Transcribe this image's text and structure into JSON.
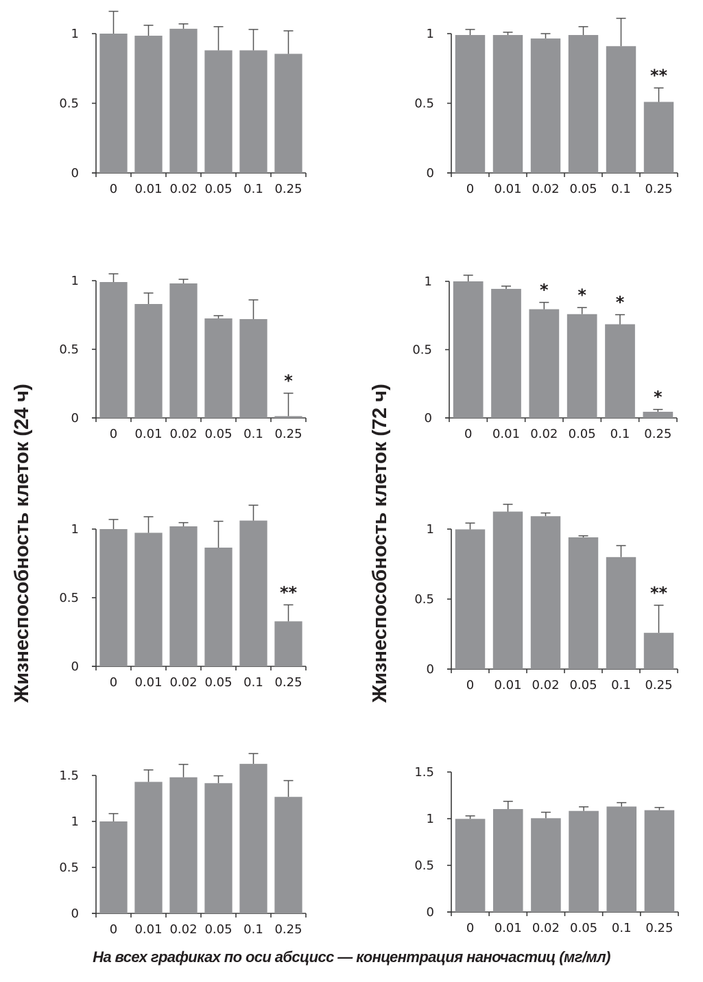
{
  "figure": {
    "ylabel_left": "Жизнеспособность клеток (24 ч)",
    "ylabel_right": "Жизнеспособность клеток (72 ч)",
    "caption": "На всех графиках по оси абсцисс — концентрация наночастиц (мг/мл)"
  },
  "colors": {
    "bar": "#939497",
    "axis": "#3a3a3a",
    "error": "#555555",
    "text": "#231f20"
  },
  "chart_data": [
    {
      "type": "bar",
      "title": "",
      "panel": "row1-left (24 h)",
      "categories": [
        "0",
        "0.01",
        "0.02",
        "0.05",
        "0.1",
        "0.25"
      ],
      "values": [
        1.0,
        0.985,
        1.035,
        0.88,
        0.88,
        0.855
      ],
      "error_upper": [
        1.16,
        1.06,
        1.07,
        1.05,
        1.03,
        1.02
      ],
      "significance": [
        "",
        "",
        "",
        "",
        "",
        ""
      ],
      "yticks": [
        "0",
        "0.5",
        "1"
      ],
      "ytick_values": [
        0,
        0.5,
        1
      ],
      "ylim": [
        0,
        1
      ],
      "xlabel": "",
      "ylabel": "",
      "grid": false
    },
    {
      "type": "bar",
      "title": "",
      "panel": "row1-right (72 h)",
      "categories": [
        "0",
        "0.01",
        "0.02",
        "0.05",
        "0.1",
        "0.25"
      ],
      "values": [
        0.99,
        0.99,
        0.965,
        0.99,
        0.91,
        0.51
      ],
      "error_upper": [
        1.03,
        1.01,
        1.0,
        1.05,
        1.11,
        0.61
      ],
      "significance": [
        "",
        "",
        "",
        "",
        "",
        "**"
      ],
      "yticks": [
        "0",
        "0.5",
        "1"
      ],
      "ytick_values": [
        0,
        0.5,
        1
      ],
      "ylim": [
        0,
        1
      ],
      "xlabel": "",
      "ylabel": "",
      "grid": false
    },
    {
      "type": "bar",
      "title": "",
      "panel": "row2-left (24 h)",
      "categories": [
        "0",
        "0.01",
        "0.02",
        "0.05",
        "0.1",
        "0.25"
      ],
      "values": [
        0.99,
        0.83,
        0.98,
        0.725,
        0.72,
        0.013
      ],
      "error_upper": [
        1.05,
        0.91,
        1.01,
        0.745,
        0.86,
        0.18
      ],
      "significance": [
        "",
        "",
        "",
        "",
        "",
        "*"
      ],
      "yticks": [
        "0",
        "0.5",
        "1"
      ],
      "ytick_values": [
        0,
        0.5,
        1
      ],
      "ylim": [
        0,
        1
      ],
      "xlabel": "",
      "ylabel": "",
      "grid": false
    },
    {
      "type": "bar",
      "title": "",
      "panel": "row2-right (72 h)",
      "categories": [
        "0",
        "0.01",
        "0.02",
        "0.05",
        "0.1",
        "0.25"
      ],
      "values": [
        1.0,
        0.945,
        0.796,
        0.76,
        0.686,
        0.045
      ],
      "error_upper": [
        1.045,
        0.965,
        0.846,
        0.808,
        0.756,
        0.062
      ],
      "significance": [
        "",
        "",
        "*",
        "*",
        "*",
        "*"
      ],
      "yticks": [
        "0",
        "0.5",
        "1"
      ],
      "ytick_values": [
        0,
        0.5,
        1
      ],
      "ylim": [
        0,
        1
      ],
      "xlabel": "",
      "ylabel": "",
      "grid": false
    },
    {
      "type": "bar",
      "title": "",
      "panel": "row3-left (24 h)",
      "categories": [
        "0",
        "0.01",
        "0.02",
        "0.05",
        "0.1",
        "0.25"
      ],
      "values": [
        1.0,
        0.973,
        1.02,
        0.865,
        1.062,
        0.328
      ],
      "error_upper": [
        1.07,
        1.09,
        1.047,
        1.057,
        1.174,
        0.448
      ],
      "significance": [
        "",
        "",
        "",
        "",
        "",
        "**"
      ],
      "yticks": [
        "0",
        "0.5",
        "1"
      ],
      "ytick_values": [
        0,
        0.5,
        1
      ],
      "ylim": [
        0,
        1
      ],
      "xlabel": "",
      "ylabel": "",
      "grid": false
    },
    {
      "type": "bar",
      "title": "",
      "panel": "row3-right (72 h)",
      "categories": [
        "0",
        "0.01",
        "0.02",
        "0.05",
        "0.1",
        "0.25"
      ],
      "values": [
        0.998,
        1.125,
        1.092,
        0.941,
        0.8,
        0.259
      ],
      "error_upper": [
        1.043,
        1.177,
        1.115,
        0.952,
        0.882,
        0.456
      ],
      "significance": [
        "",
        "",
        "",
        "",
        "",
        "**"
      ],
      "yticks": [
        "0",
        "0.5",
        "1"
      ],
      "ytick_values": [
        0,
        0.5,
        1
      ],
      "ylim": [
        0,
        1
      ],
      "xlabel": "",
      "ylabel": "",
      "grid": false
    },
    {
      "type": "bar",
      "title": "",
      "panel": "row4-left (24 h)",
      "categories": [
        "0",
        "0.01",
        "0.02",
        "0.05",
        "0.1",
        "0.25"
      ],
      "values": [
        1.0,
        1.43,
        1.48,
        1.416,
        1.626,
        1.267
      ],
      "error_upper": [
        1.085,
        1.56,
        1.62,
        1.496,
        1.738,
        1.444
      ],
      "significance": [
        "",
        "",
        "",
        "",
        "",
        ""
      ],
      "yticks": [
        "0",
        "0.5",
        "1",
        "1.5"
      ],
      "ytick_values": [
        0,
        0.5,
        1,
        1.5
      ],
      "ylim": [
        0,
        1.5
      ],
      "xlabel": "",
      "ylabel": "",
      "grid": false
    },
    {
      "type": "bar",
      "title": "",
      "panel": "row4-right (72 h)",
      "categories": [
        "0",
        "0.01",
        "0.02",
        "0.05",
        "0.1",
        "0.25"
      ],
      "values": [
        0.998,
        1.103,
        1.005,
        1.083,
        1.13,
        1.091
      ],
      "error_upper": [
        1.03,
        1.186,
        1.069,
        1.127,
        1.172,
        1.12
      ],
      "significance": [
        "",
        "",
        "",
        "",
        "",
        ""
      ],
      "yticks": [
        "0",
        "0.5",
        "1",
        "1.5"
      ],
      "ytick_values": [
        0,
        0.5,
        1,
        1.5
      ],
      "ylim": [
        0,
        1.5
      ],
      "xlabel": "",
      "ylabel": "",
      "grid": false
    }
  ]
}
